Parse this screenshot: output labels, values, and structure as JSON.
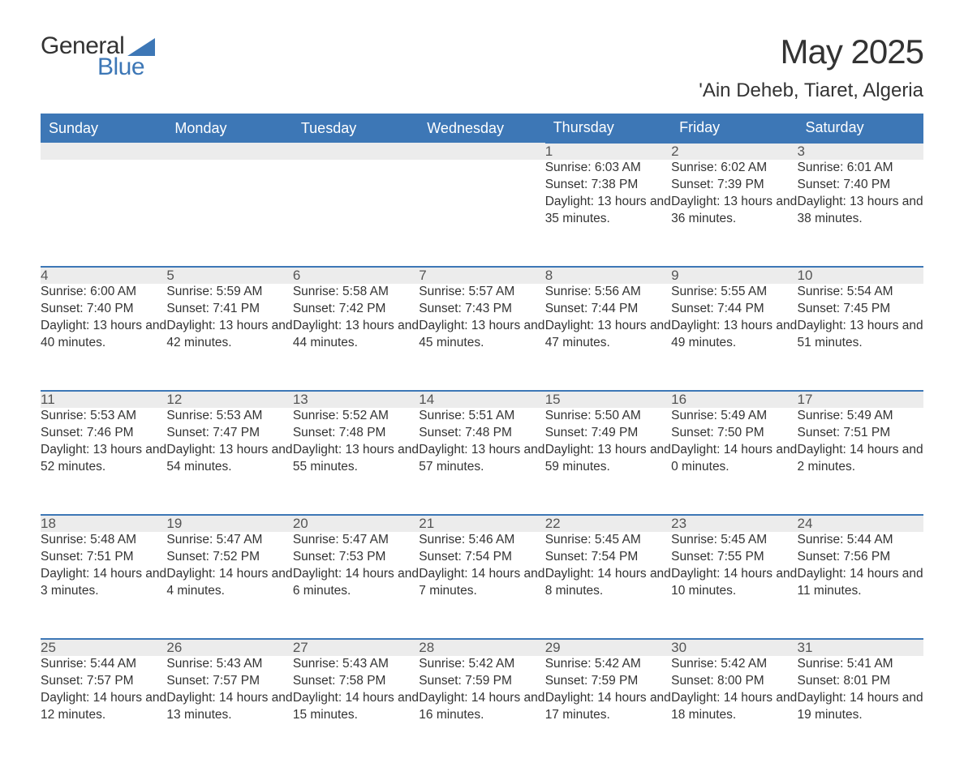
{
  "logo": {
    "text1": "General",
    "text2": "Blue",
    "accent_color": "#3d77b6"
  },
  "title": "May 2025",
  "location": "'Ain Deheb, Tiaret, Algeria",
  "colors": {
    "header_bg": "#3d77b6",
    "header_text": "#ffffff",
    "daynum_bg": "#ececec",
    "daynum_border": "#3d77b6",
    "body_text": "#333333",
    "background": "#ffffff"
  },
  "fonts": {
    "title_size": 42,
    "location_size": 24,
    "header_size": 18,
    "daynum_size": 17,
    "cell_size": 15.5
  },
  "day_headers": [
    "Sunday",
    "Monday",
    "Tuesday",
    "Wednesday",
    "Thursday",
    "Friday",
    "Saturday"
  ],
  "weeks": [
    [
      null,
      null,
      null,
      null,
      {
        "n": "1",
        "sunrise": "6:03 AM",
        "sunset": "7:38 PM",
        "daylight": "13 hours and 35 minutes."
      },
      {
        "n": "2",
        "sunrise": "6:02 AM",
        "sunset": "7:39 PM",
        "daylight": "13 hours and 36 minutes."
      },
      {
        "n": "3",
        "sunrise": "6:01 AM",
        "sunset": "7:40 PM",
        "daylight": "13 hours and 38 minutes."
      }
    ],
    [
      {
        "n": "4",
        "sunrise": "6:00 AM",
        "sunset": "7:40 PM",
        "daylight": "13 hours and 40 minutes."
      },
      {
        "n": "5",
        "sunrise": "5:59 AM",
        "sunset": "7:41 PM",
        "daylight": "13 hours and 42 minutes."
      },
      {
        "n": "6",
        "sunrise": "5:58 AM",
        "sunset": "7:42 PM",
        "daylight": "13 hours and 44 minutes."
      },
      {
        "n": "7",
        "sunrise": "5:57 AM",
        "sunset": "7:43 PM",
        "daylight": "13 hours and 45 minutes."
      },
      {
        "n": "8",
        "sunrise": "5:56 AM",
        "sunset": "7:44 PM",
        "daylight": "13 hours and 47 minutes."
      },
      {
        "n": "9",
        "sunrise": "5:55 AM",
        "sunset": "7:44 PM",
        "daylight": "13 hours and 49 minutes."
      },
      {
        "n": "10",
        "sunrise": "5:54 AM",
        "sunset": "7:45 PM",
        "daylight": "13 hours and 51 minutes."
      }
    ],
    [
      {
        "n": "11",
        "sunrise": "5:53 AM",
        "sunset": "7:46 PM",
        "daylight": "13 hours and 52 minutes."
      },
      {
        "n": "12",
        "sunrise": "5:53 AM",
        "sunset": "7:47 PM",
        "daylight": "13 hours and 54 minutes."
      },
      {
        "n": "13",
        "sunrise": "5:52 AM",
        "sunset": "7:48 PM",
        "daylight": "13 hours and 55 minutes."
      },
      {
        "n": "14",
        "sunrise": "5:51 AM",
        "sunset": "7:48 PM",
        "daylight": "13 hours and 57 minutes."
      },
      {
        "n": "15",
        "sunrise": "5:50 AM",
        "sunset": "7:49 PM",
        "daylight": "13 hours and 59 minutes."
      },
      {
        "n": "16",
        "sunrise": "5:49 AM",
        "sunset": "7:50 PM",
        "daylight": "14 hours and 0 minutes."
      },
      {
        "n": "17",
        "sunrise": "5:49 AM",
        "sunset": "7:51 PM",
        "daylight": "14 hours and 2 minutes."
      }
    ],
    [
      {
        "n": "18",
        "sunrise": "5:48 AM",
        "sunset": "7:51 PM",
        "daylight": "14 hours and 3 minutes."
      },
      {
        "n": "19",
        "sunrise": "5:47 AM",
        "sunset": "7:52 PM",
        "daylight": "14 hours and 4 minutes."
      },
      {
        "n": "20",
        "sunrise": "5:47 AM",
        "sunset": "7:53 PM",
        "daylight": "14 hours and 6 minutes."
      },
      {
        "n": "21",
        "sunrise": "5:46 AM",
        "sunset": "7:54 PM",
        "daylight": "14 hours and 7 minutes."
      },
      {
        "n": "22",
        "sunrise": "5:45 AM",
        "sunset": "7:54 PM",
        "daylight": "14 hours and 8 minutes."
      },
      {
        "n": "23",
        "sunrise": "5:45 AM",
        "sunset": "7:55 PM",
        "daylight": "14 hours and 10 minutes."
      },
      {
        "n": "24",
        "sunrise": "5:44 AM",
        "sunset": "7:56 PM",
        "daylight": "14 hours and 11 minutes."
      }
    ],
    [
      {
        "n": "25",
        "sunrise": "5:44 AM",
        "sunset": "7:57 PM",
        "daylight": "14 hours and 12 minutes."
      },
      {
        "n": "26",
        "sunrise": "5:43 AM",
        "sunset": "7:57 PM",
        "daylight": "14 hours and 13 minutes."
      },
      {
        "n": "27",
        "sunrise": "5:43 AM",
        "sunset": "7:58 PM",
        "daylight": "14 hours and 15 minutes."
      },
      {
        "n": "28",
        "sunrise": "5:42 AM",
        "sunset": "7:59 PM",
        "daylight": "14 hours and 16 minutes."
      },
      {
        "n": "29",
        "sunrise": "5:42 AM",
        "sunset": "7:59 PM",
        "daylight": "14 hours and 17 minutes."
      },
      {
        "n": "30",
        "sunrise": "5:42 AM",
        "sunset": "8:00 PM",
        "daylight": "14 hours and 18 minutes."
      },
      {
        "n": "31",
        "sunrise": "5:41 AM",
        "sunset": "8:01 PM",
        "daylight": "14 hours and 19 minutes."
      }
    ]
  ],
  "labels": {
    "sunrise": "Sunrise: ",
    "sunset": "Sunset: ",
    "daylight": "Daylight: "
  }
}
